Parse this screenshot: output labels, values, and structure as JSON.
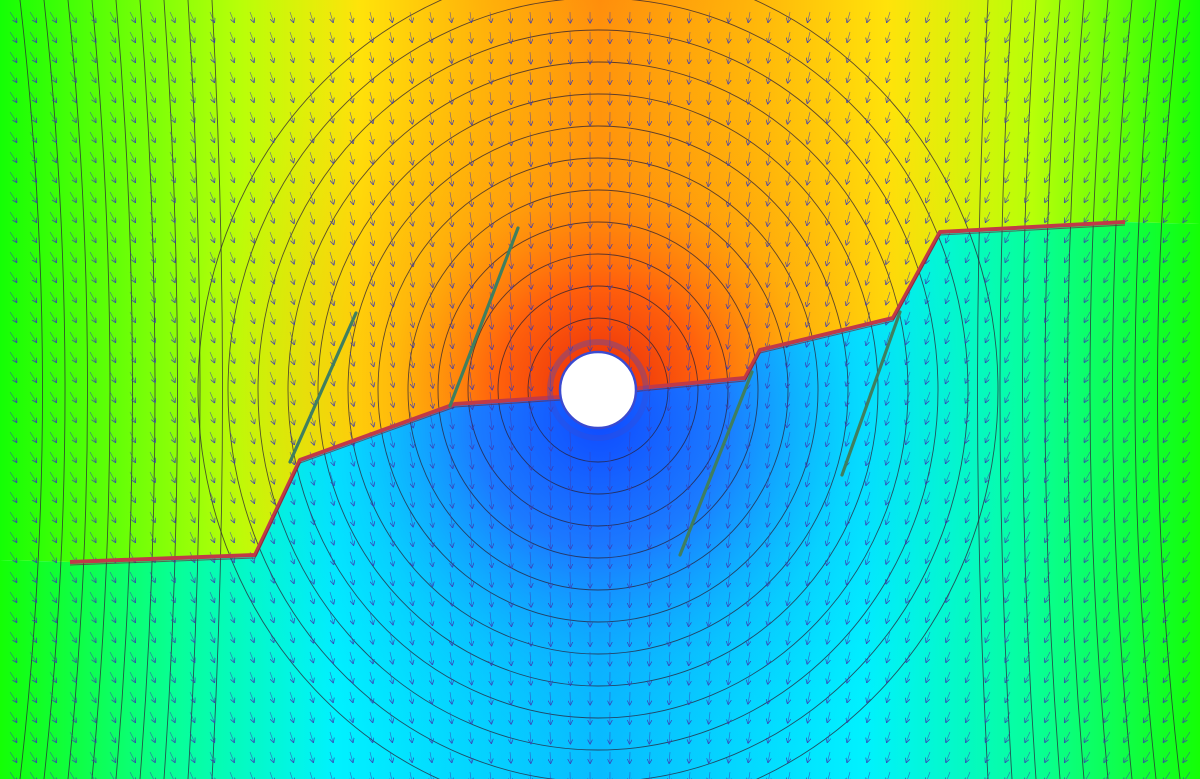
{
  "figure": {
    "kind": "potential flow field around a circular well with fractures",
    "colors": {
      "high": "#e8280a",
      "orange": "#ff8a0c",
      "yellow": "#ffe30a",
      "green": "#14ff05",
      "cyan": "#00f2ff",
      "low": "#0f4bff",
      "contour": "#2a1f33",
      "arrow": "#3c3cb4",
      "fracture_red": "#c03a48",
      "fracture_green": "#3f7f5f",
      "well_fill": "#ffffff",
      "well_ring": "#3a4ad0"
    },
    "icons": [
      "flow-arrow-icon",
      "well-circle-icon"
    ]
  }
}
